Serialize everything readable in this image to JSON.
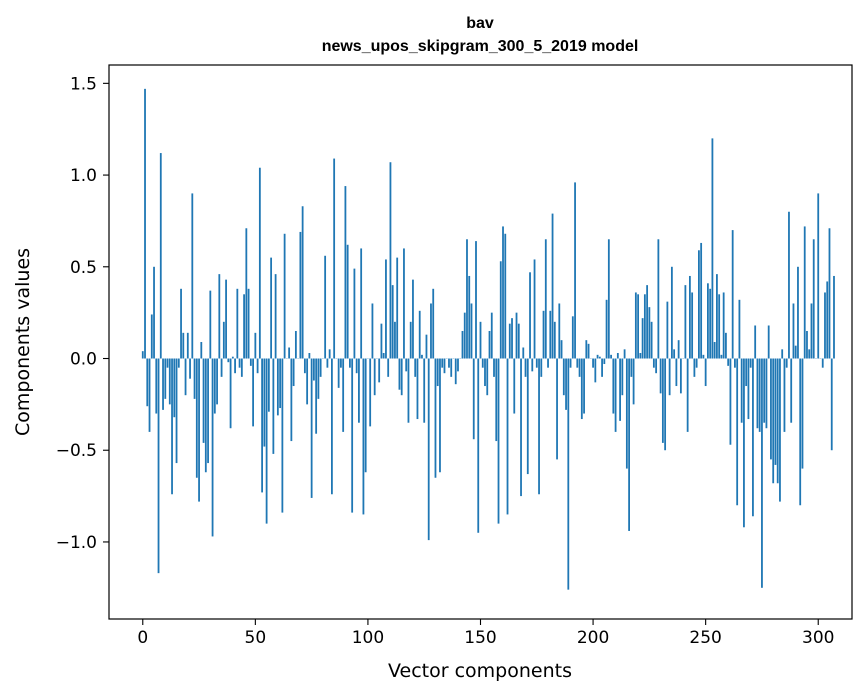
{
  "chart_data": {
    "type": "bar",
    "title": [
      "bav",
      "news_upos_skipgram_300_5_2019 model"
    ],
    "xlabel": "Vector components",
    "ylabel": "Components values",
    "xlim": [
      -15,
      315
    ],
    "ylim": [
      -1.42,
      1.6
    ],
    "xticks": [
      0,
      50,
      100,
      150,
      200,
      250,
      300
    ],
    "yticks": [
      -1.0,
      -0.5,
      0.0,
      0.5,
      1.0,
      1.5
    ],
    "xtick_labels": [
      "0",
      "50",
      "100",
      "150",
      "200",
      "250",
      "300"
    ],
    "ytick_labels": [
      "−1.0",
      "−0.5",
      "0.0",
      "0.5",
      "1.0",
      "1.5"
    ],
    "grid": false,
    "bar_color": "#1f77b4",
    "values": [
      0.04,
      1.47,
      -0.26,
      -0.4,
      0.24,
      0.5,
      -0.3,
      -1.17,
      1.12,
      -0.28,
      -0.22,
      -0.05,
      -0.25,
      -0.74,
      -0.32,
      -0.57,
      -0.05,
      0.38,
      0.14,
      -0.2,
      0.14,
      -0.11,
      0.9,
      -0.22,
      -0.65,
      -0.78,
      0.09,
      -0.46,
      -0.62,
      -0.57,
      0.37,
      -0.97,
      -0.3,
      -0.25,
      0.46,
      -0.1,
      0.2,
      0.43,
      -0.02,
      -0.38,
      0.01,
      -0.08,
      0.38,
      -0.05,
      -0.1,
      0.35,
      0.71,
      0.38,
      -0.04,
      -0.37,
      0.14,
      -0.08,
      1.04,
      -0.73,
      -0.48,
      -0.9,
      -0.29,
      0.55,
      -0.52,
      0.46,
      -0.31,
      -0.27,
      -0.84,
      0.68,
      0.0,
      0.06,
      -0.45,
      -0.15,
      0.15,
      0.0,
      0.69,
      0.83,
      -0.08,
      -0.25,
      0.03,
      -0.76,
      -0.12,
      -0.41,
      -0.22,
      -0.1,
      0.0,
      0.56,
      -0.05,
      0.05,
      -0.74,
      1.09,
      0.0,
      -0.16,
      -0.05,
      -0.4,
      0.94,
      0.62,
      -0.05,
      -0.84,
      0.49,
      -0.08,
      -0.35,
      0.6,
      -0.85,
      -0.62,
      0.0,
      -0.37,
      0.3,
      -0.2,
      0.0,
      -0.13,
      0.19,
      0.03,
      0.54,
      -0.1,
      1.07,
      0.4,
      0.2,
      0.55,
      -0.17,
      -0.2,
      0.6,
      -0.07,
      -0.35,
      0.2,
      0.43,
      -0.1,
      -0.33,
      0.26,
      0.02,
      -0.35,
      0.13,
      -0.99,
      0.3,
      0.38,
      -0.65,
      -0.15,
      -0.62,
      -0.05,
      -0.08,
      0.0,
      -0.05,
      -0.1,
      0.0,
      -0.14,
      -0.07,
      0.0,
      0.15,
      0.25,
      0.65,
      0.45,
      0.3,
      -0.44,
      0.64,
      -0.95,
      0.2,
      -0.05,
      -0.15,
      -0.2,
      0.15,
      0.25,
      -0.1,
      -0.45,
      -0.9,
      0.53,
      0.72,
      0.68,
      -0.85,
      0.19,
      0.22,
      -0.3,
      0.25,
      0.19,
      -0.75,
      0.06,
      -0.1,
      -0.63,
      0.47,
      -0.07,
      0.54,
      -0.05,
      -0.74,
      -0.1,
      0.26,
      0.65,
      -0.05,
      0.26,
      0.79,
      0.2,
      -0.55,
      0.3,
      0.1,
      -0.2,
      -0.28,
      -1.26,
      -0.05,
      0.23,
      0.96,
      -0.05,
      -0.1,
      -0.33,
      -0.3,
      0.1,
      0.08,
      0.0,
      -0.05,
      -0.13,
      0.02,
      0.01,
      -0.1,
      -0.03,
      0.32,
      0.65,
      0.02,
      -0.3,
      -0.4,
      0.03,
      -0.34,
      -0.2,
      0.05,
      -0.6,
      -0.94,
      -0.1,
      -0.25,
      0.36,
      0.35,
      0.03,
      0.22,
      0.35,
      0.4,
      0.28,
      0.2,
      -0.05,
      -0.08,
      0.65,
      -0.19,
      -0.46,
      -0.5,
      0.31,
      -0.2,
      0.5,
      0.05,
      -0.15,
      0.1,
      -0.19,
      0.0,
      0.4,
      -0.4,
      0.45,
      0.36,
      -0.1,
      -0.05,
      0.59,
      0.63,
      0.02,
      -0.15,
      0.41,
      0.38,
      1.2,
      0.09,
      0.46,
      0.35,
      0.02,
      0.36,
      0.14,
      -0.04,
      -0.47,
      0.7,
      -0.05,
      -0.8,
      0.32,
      -0.35,
      -0.92,
      -0.15,
      -0.33,
      -0.05,
      -0.86,
      0.18,
      -0.38,
      -0.4,
      -1.25,
      -0.35,
      -0.38,
      0.18,
      -0.55,
      -0.68,
      -0.58,
      -0.68,
      -0.78,
      0.05,
      -0.4,
      -0.05,
      0.8,
      -0.35,
      0.3,
      0.07,
      0.5,
      -0.8,
      -0.6,
      0.72,
      0.15,
      0.05,
      0.3,
      0.65,
      0.0,
      0.9,
      0.0,
      -0.05,
      0.36,
      0.42,
      0.71,
      -0.5,
      0.45
    ]
  }
}
